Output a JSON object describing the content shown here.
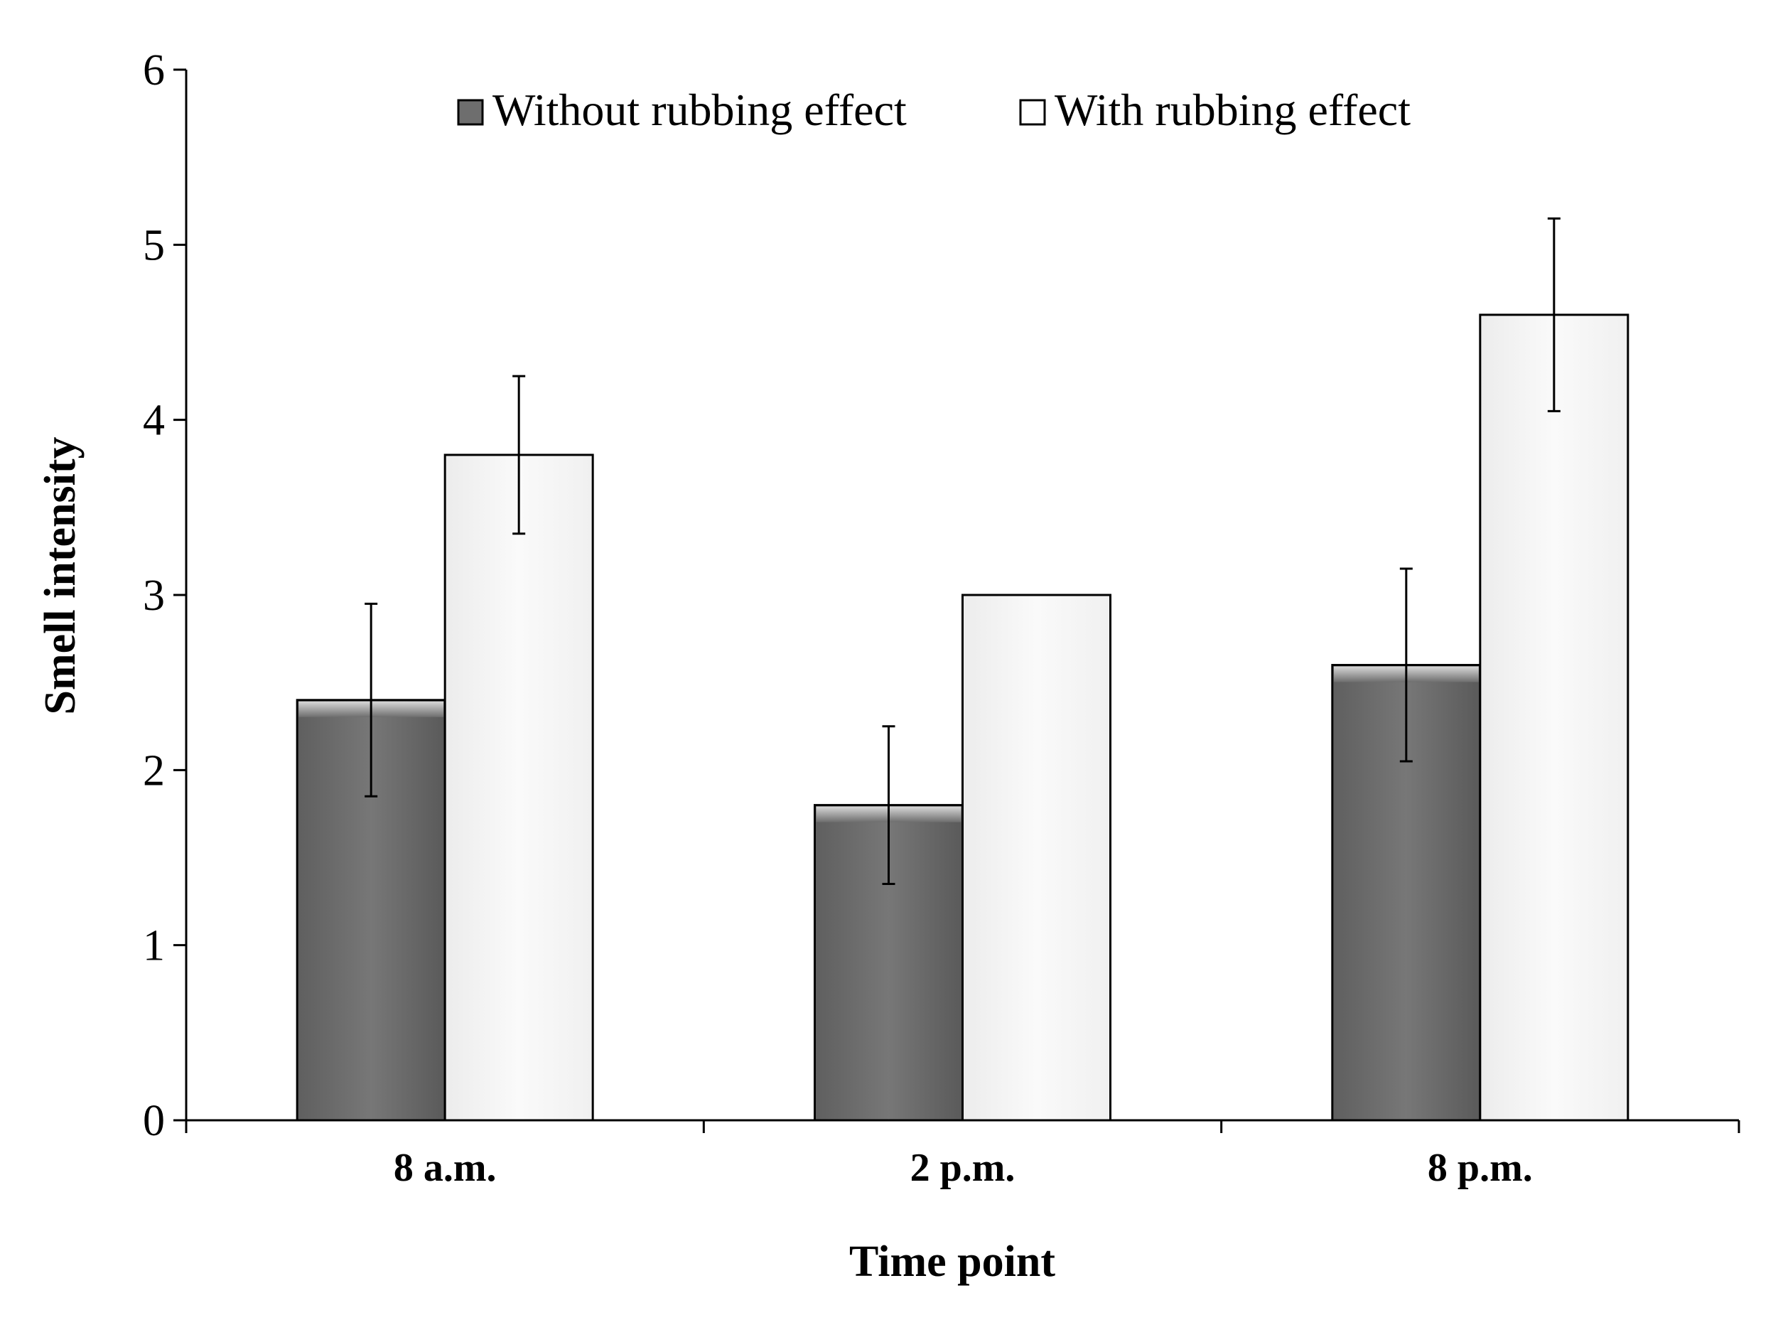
{
  "chart_data": {
    "type": "bar",
    "title": "",
    "xlabel": "Time point",
    "ylabel": "Smell intensity",
    "categories": [
      "8 a.m.",
      "2 p.m.",
      "8 p.m."
    ],
    "series": [
      {
        "name": "Without rubbing effect",
        "values": [
          2.4,
          1.8,
          2.6
        ],
        "errors": [
          [
            1.85,
            2.95
          ],
          [
            1.35,
            2.25
          ],
          [
            2.05,
            3.15
          ]
        ],
        "color": "#6e6e6e"
      },
      {
        "name": "With rubbing effect",
        "values": [
          3.8,
          3.0,
          4.6
        ],
        "errors": [
          [
            3.35,
            4.25
          ],
          null,
          [
            4.05,
            5.15
          ]
        ],
        "color": "#f7f7f7"
      }
    ],
    "ylim": [
      0,
      6
    ],
    "yticks": [
      0,
      1,
      2,
      3,
      4,
      5,
      6
    ],
    "grid": false,
    "legend": "top-center"
  }
}
